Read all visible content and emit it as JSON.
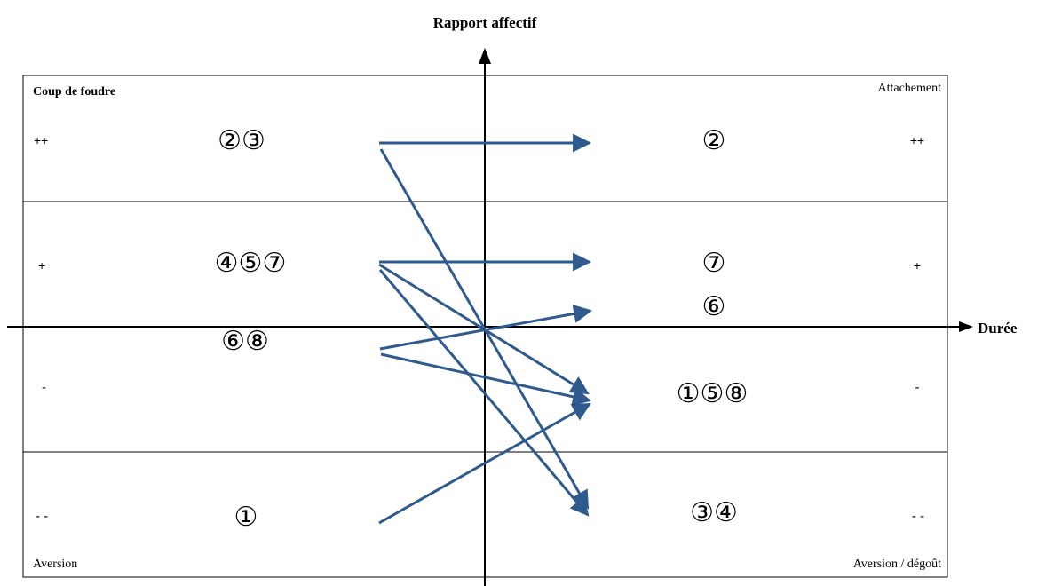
{
  "title": "Rapport affectif",
  "x_axis_label": "Durée",
  "corners": {
    "top_left": "Coup de foudre",
    "top_right": "Attachement",
    "bottom_left": "Aversion",
    "bottom_right": "Aversion / dégoût"
  },
  "levels": {
    "band1": "++",
    "band2": "+",
    "band3": "-",
    "band4": "- -"
  },
  "left_groups": {
    "band1": "②③",
    "band2": "④⑤⑦",
    "band3": "⑥⑧",
    "band4": "①"
  },
  "right_groups": {
    "g2": "②",
    "g7": "⑦",
    "g6": "⑥",
    "g158": "①⑤⑧",
    "g34": "③④"
  },
  "colors": {
    "arrow": "#2f5a8e",
    "axis": "#000000",
    "border": "#000000"
  }
}
